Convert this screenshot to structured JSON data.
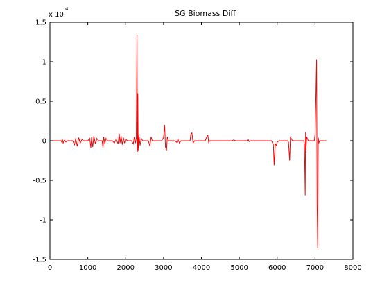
{
  "chart_data": {
    "type": "line",
    "title": "SG  Biomass Diff",
    "xlabel": "",
    "ylabel": "",
    "xlim": [
      0,
      8000
    ],
    "ylim": [
      -15000,
      15000
    ],
    "x_ticks": [
      0,
      1000,
      2000,
      3000,
      4000,
      5000,
      6000,
      7000,
      8000
    ],
    "y_ticks": [
      -1.5,
      -1,
      -0.5,
      0,
      0.5,
      1,
      1.5
    ],
    "y_multiplier_base": "x 10",
    "y_multiplier_exponent": "4",
    "grid": false,
    "series": [
      {
        "color": "#ff0000",
        "points": [
          [
            0,
            0
          ],
          [
            300,
            0
          ],
          [
            310,
            -200
          ],
          [
            330,
            150
          ],
          [
            350,
            -300
          ],
          [
            380,
            100
          ],
          [
            420,
            -150
          ],
          [
            460,
            0
          ],
          [
            600,
            0
          ],
          [
            650,
            -500
          ],
          [
            680,
            300
          ],
          [
            720,
            -700
          ],
          [
            760,
            400
          ],
          [
            800,
            -300
          ],
          [
            850,
            200
          ],
          [
            880,
            0
          ],
          [
            1000,
            0
          ],
          [
            1050,
            300
          ],
          [
            1080,
            -900
          ],
          [
            1100,
            500
          ],
          [
            1130,
            -800
          ],
          [
            1160,
            600
          ],
          [
            1200,
            -400
          ],
          [
            1240,
            300
          ],
          [
            1280,
            0
          ],
          [
            1380,
            0
          ],
          [
            1400,
            -900
          ],
          [
            1420,
            500
          ],
          [
            1450,
            -400
          ],
          [
            1480,
            300
          ],
          [
            1520,
            0
          ],
          [
            1650,
            0
          ],
          [
            1700,
            -300
          ],
          [
            1750,
            200
          ],
          [
            1800,
            -400
          ],
          [
            1830,
            900
          ],
          [
            1850,
            -300
          ],
          [
            1880,
            600
          ],
          [
            1910,
            -500
          ],
          [
            1940,
            400
          ],
          [
            1970,
            -300
          ],
          [
            2000,
            200
          ],
          [
            2050,
            0
          ],
          [
            2150,
            0
          ],
          [
            2200,
            -400
          ],
          [
            2230,
            500
          ],
          [
            2260,
            -300
          ],
          [
            2280,
            400
          ],
          [
            2300,
            13400
          ],
          [
            2310,
            -1400
          ],
          [
            2320,
            6000
          ],
          [
            2330,
            -1200
          ],
          [
            2350,
            700
          ],
          [
            2380,
            -600
          ],
          [
            2410,
            300
          ],
          [
            2450,
            0
          ],
          [
            2600,
            0
          ],
          [
            2640,
            -700
          ],
          [
            2670,
            500
          ],
          [
            2700,
            0
          ],
          [
            2950,
            0
          ],
          [
            3000,
            400
          ],
          [
            3030,
            2000
          ],
          [
            3050,
            -800
          ],
          [
            3080,
            -1100
          ],
          [
            3100,
            500
          ],
          [
            3130,
            0
          ],
          [
            3300,
            0
          ],
          [
            3350,
            -200
          ],
          [
            3380,
            200
          ],
          [
            3420,
            -300
          ],
          [
            3460,
            0
          ],
          [
            3700,
            0
          ],
          [
            3720,
            800
          ],
          [
            3750,
            1000
          ],
          [
            3780,
            -300
          ],
          [
            3820,
            0
          ],
          [
            4100,
            0
          ],
          [
            4150,
            600
          ],
          [
            4170,
            700
          ],
          [
            4190,
            -200
          ],
          [
            4220,
            0
          ],
          [
            4800,
            0
          ],
          [
            4850,
            100
          ],
          [
            4900,
            0
          ],
          [
            5200,
            0
          ],
          [
            5230,
            200
          ],
          [
            5260,
            -100
          ],
          [
            5300,
            0
          ],
          [
            5850,
            0
          ],
          [
            5900,
            -500
          ],
          [
            5920,
            -3100
          ],
          [
            5950,
            -400
          ],
          [
            5980,
            -600
          ],
          [
            6000,
            -200
          ],
          [
            6050,
            0
          ],
          [
            6280,
            0
          ],
          [
            6300,
            -200
          ],
          [
            6330,
            -2500
          ],
          [
            6350,
            500
          ],
          [
            6370,
            300
          ],
          [
            6400,
            0
          ],
          [
            6700,
            0
          ],
          [
            6720,
            -500
          ],
          [
            6740,
            -6900
          ],
          [
            6750,
            1100
          ],
          [
            6760,
            -1200
          ],
          [
            6780,
            500
          ],
          [
            6820,
            0
          ],
          [
            6980,
            0
          ],
          [
            7000,
            800
          ],
          [
            7020,
            5100
          ],
          [
            7040,
            10300
          ],
          [
            7055,
            -8000
          ],
          [
            7070,
            -13600
          ],
          [
            7085,
            400
          ],
          [
            7100,
            -300
          ],
          [
            7120,
            0
          ],
          [
            7300,
            0
          ]
        ]
      }
    ]
  }
}
